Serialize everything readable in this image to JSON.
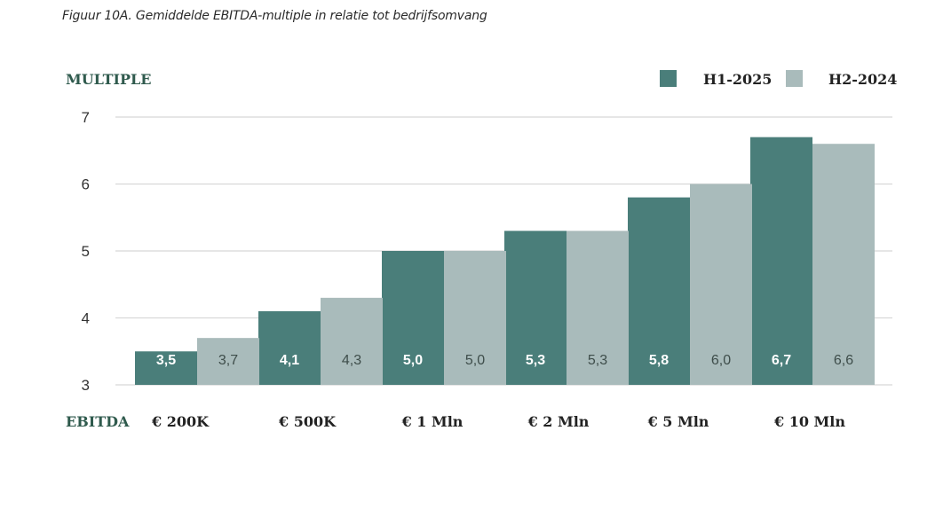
{
  "caption": "Figuur 10A.  Gemiddelde EBITDA-multiple in relatie tot bedrijfsomvang",
  "colors": {
    "h1": "#4a7e7a",
    "h2": "#a9bbbb",
    "heading": "#2f5a4d",
    "grid": "#d8d8d8",
    "label_dark": "#ffffff",
    "label_light": "#3e4d4a"
  },
  "chart_data": {
    "type": "bar",
    "title": "Figuur 10A.  Gemiddelde EBITDA-multiple in relatie tot bedrijfsomvang",
    "ylabel": "MULTIPLE",
    "xlabel": "EBITDA",
    "ylim": [
      3,
      7
    ],
    "yticks": [
      "3",
      "4",
      "5",
      "6",
      "7"
    ],
    "grid": true,
    "legend_position": "top-right",
    "categories": [
      "€ 200K",
      "€ 500K",
      "€ 1 Mln",
      "€ 2 Mln",
      "€ 5 Mln",
      "€ 10 Mln"
    ],
    "series": [
      {
        "name": "H1-2025",
        "values": [
          3.5,
          4.1,
          5.0,
          5.3,
          5.8,
          6.7
        ],
        "labels": [
          "3,5",
          "4,1",
          "5,0",
          "5,3",
          "5,8",
          "6,7"
        ]
      },
      {
        "name": "H2-2024",
        "values": [
          3.7,
          4.3,
          5.0,
          5.3,
          6.0,
          6.6
        ],
        "labels": [
          "3,7",
          "4,3",
          "5,0",
          "5,3",
          "6,0",
          "6,6"
        ]
      }
    ]
  }
}
